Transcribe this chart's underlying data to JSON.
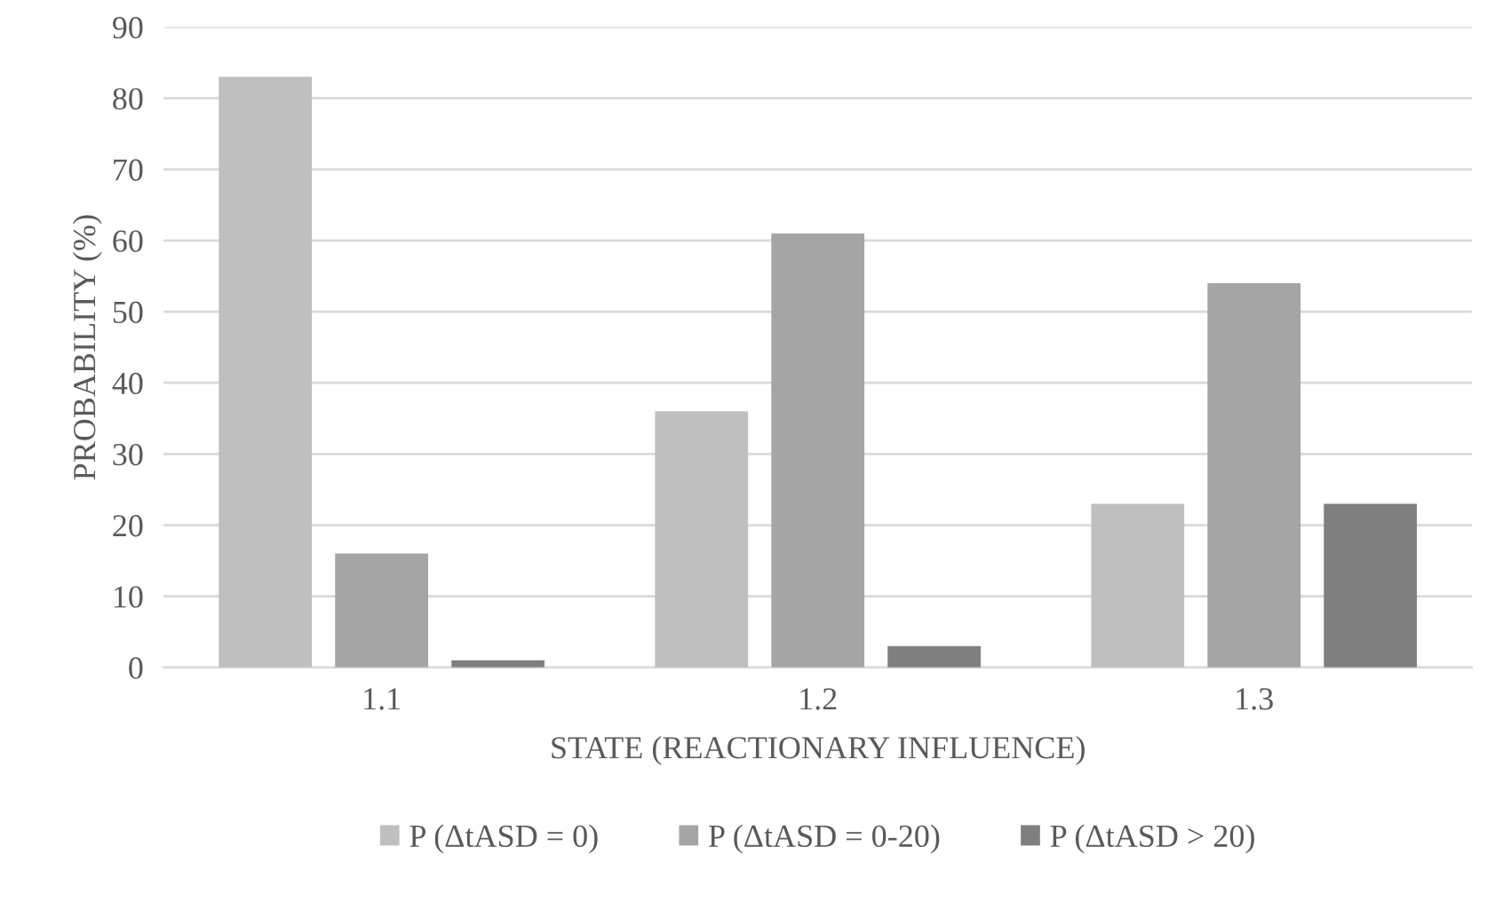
{
  "chart_data": {
    "type": "bar",
    "xlabel": "STATE (REACTIONARY INFLUENCE)",
    "ylabel": "PROBABILITY (%)",
    "categories": [
      "1.1",
      "1.2",
      "1.3"
    ],
    "series": [
      {
        "name": "P (ΔtASD = 0)",
        "color": "#bfbfbf",
        "values": [
          83,
          36,
          23
        ]
      },
      {
        "name": "P (ΔtASD = 0-20)",
        "color": "#a5a5a5",
        "values": [
          16,
          61,
          54
        ]
      },
      {
        "name": "P (ΔtASD > 20)",
        "color": "#7f7f7f",
        "values": [
          1,
          3,
          23
        ]
      }
    ],
    "ylim": [
      0,
      90
    ],
    "yticks": [
      0,
      10,
      20,
      30,
      40,
      50,
      60,
      70,
      80,
      90
    ],
    "grid": "y",
    "legend": "bottom"
  }
}
